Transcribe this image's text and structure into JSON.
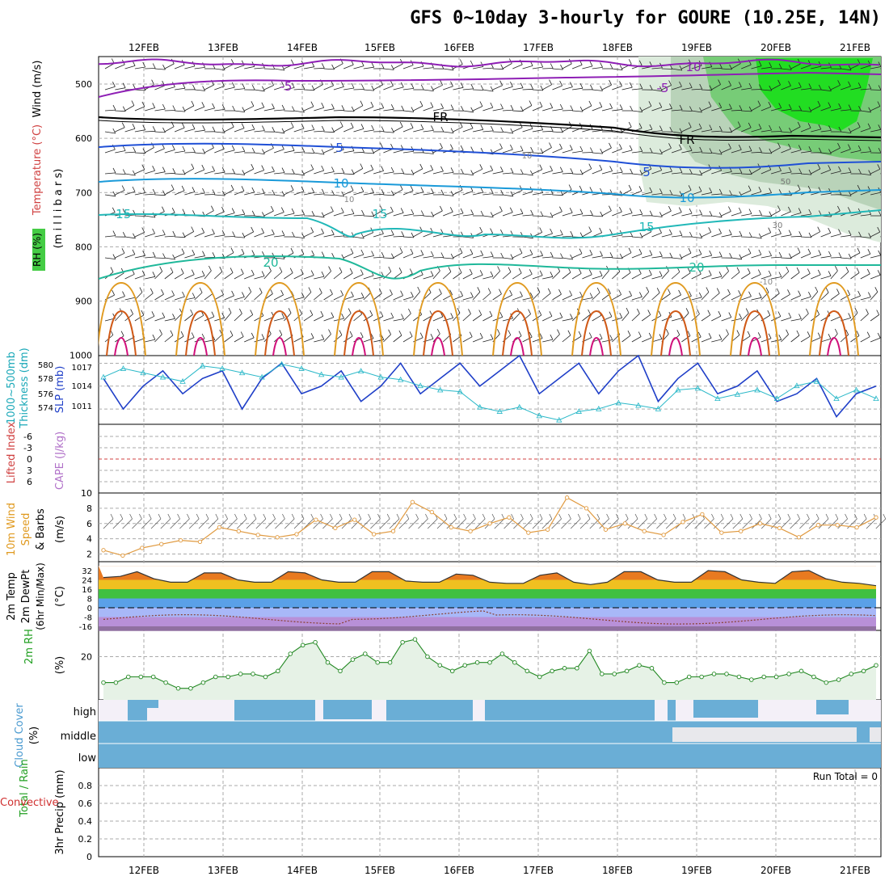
{
  "title": "GFS 0~10day 3-hourly for GOURE (10.25E, 14N)",
  "dates": [
    "12FEB",
    "13FEB",
    "14FEB",
    "15FEB",
    "16FEB",
    "17FEB",
    "18FEB",
    "19FEB",
    "20FEB",
    "21FEB"
  ],
  "colors": {
    "grid": "#aaaaaa",
    "purple": "#8e1fb5",
    "blue": "#1f4fd6",
    "lightblue": "#1a9ad9",
    "teal": "#21b8b8",
    "green": "#1fb89a",
    "orange": "#e09a20",
    "rust": "#d05a18",
    "magenta": "#d0107a",
    "rhgreen": "#22dd22",
    "cloud": "#6aaed6",
    "slp": "#1f3fc8",
    "thick": "#2ab8c8"
  },
  "panels": {
    "upper": {
      "ylabel_wind": "Wind (m/s)",
      "ylabel_temp": "Temperature (°C)",
      "ylabel_rh": "RH (%)",
      "ylabel_mb": "(m i l l i b a r s)",
      "yticks": [
        "500",
        "600",
        "700",
        "800",
        "900",
        "1000"
      ],
      "contour_labels": [
        "10",
        "-5",
        "-5",
        "FR",
        "FR",
        "5",
        "5",
        "10",
        "10",
        "-15",
        "15",
        "15",
        "20",
        "20",
        "10",
        "10",
        "-10",
        "50",
        "30"
      ]
    },
    "pressure": {
      "ylabel_thick": "Thickness (dm)",
      "ylabel_thick2": "1000~500mb",
      "ylabel_slp": "SLP (mb)",
      "thick_ticks": [
        "580",
        "578",
        "576",
        "574"
      ],
      "slp_ticks": [
        "1017",
        "1014",
        "1011"
      ]
    },
    "stability": {
      "ylabel_li": "Lifted Index",
      "ylabel_cape": "CAPE (J/kg)",
      "yticks": [
        "-6",
        "-3",
        "0",
        "3",
        "6"
      ]
    },
    "wind10": {
      "ylabel_a": "10m Wind",
      "ylabel_b": "Speed",
      "ylabel_c": "& Barbs",
      "ylabel_unit": "(m/s)",
      "yticks": [
        "10",
        "8",
        "6",
        "4",
        "2"
      ]
    },
    "temp2m": {
      "ylabel_a": "2m Temp",
      "ylabel_b": "2m DewPt",
      "ylabel_c": "(6hr Min/Max)",
      "ylabel_unit": "(°C)",
      "yticks": [
        "32",
        "24",
        "16",
        "8",
        "0",
        "-8",
        "-16"
      ]
    },
    "rh2m": {
      "ylabel": "2m RH",
      "ylabel_unit": "(%)",
      "yticks": [
        "20"
      ]
    },
    "cloud": {
      "ylabel": "Cloud Cover",
      "ylabel_unit": "(%)",
      "levels": [
        "high",
        "middle",
        "low"
      ]
    },
    "precip": {
      "ylabel_a": "Total / Rain",
      "ylabel_b": "Convective",
      "ylabel_c": "3hr Precip (mm)",
      "yticks": [
        "0.8",
        "0.6",
        "0.4",
        "0.2",
        "0"
      ],
      "run_total": "Run Total = 0"
    }
  },
  "chart_data": [
    {
      "type": "line",
      "name": "slp",
      "x": [
        "11.5",
        "11.75",
        "12.0",
        "12.25",
        "12.5",
        "12.75",
        "13.0",
        "13.25",
        "13.5",
        "13.75",
        "14.0",
        "14.25",
        "14.5",
        "14.75",
        "15.0",
        "15.25",
        "15.5",
        "15.75",
        "16.0",
        "16.25",
        "16.5",
        "16.75",
        "17.0",
        "17.25",
        "17.5",
        "17.75",
        "18.0",
        "18.25",
        "18.5",
        "18.75",
        "19.0",
        "19.25",
        "19.5",
        "19.75",
        "20.0",
        "20.25",
        "20.5",
        "20.75",
        "21.0",
        "21.25"
      ],
      "values": [
        1015,
        1011,
        1014,
        1016,
        1013,
        1015,
        1016,
        1011,
        1015,
        1017,
        1013,
        1014,
        1016,
        1012,
        1014,
        1017,
        1013,
        1015,
        1017,
        1014,
        1016,
        1018,
        1013,
        1015,
        1017,
        1013,
        1016,
        1018,
        1012,
        1015,
        1017,
        1013,
        1014,
        1016,
        1012,
        1013,
        1015,
        1010,
        1013,
        1014
      ],
      "ylim": [
        1009,
        1018
      ]
    },
    {
      "type": "line",
      "name": "thickness",
      "values": [
        578.5,
        579.5,
        579,
        578.5,
        578,
        579.8,
        579.5,
        579,
        578.5,
        580,
        579.5,
        578.8,
        578.5,
        579.2,
        578.5,
        578.2,
        577.5,
        577,
        576.8,
        575,
        574.5,
        575,
        574,
        573.5,
        574.5,
        574.8,
        575.5,
        575.2,
        574.8,
        577,
        577.2,
        576,
        576.5,
        577,
        576,
        577.5,
        578,
        576,
        577,
        576
      ],
      "ylim": [
        573,
        581
      ]
    },
    {
      "type": "line",
      "name": "wind10m_speed",
      "values": [
        2.5,
        1.8,
        2.8,
        3.3,
        3.8,
        3.6,
        5.5,
        5.0,
        4.5,
        4.2,
        4.6,
        6.5,
        5.4,
        6.5,
        4.6,
        5.0,
        8.8,
        7.5,
        5.5,
        5.0,
        6.0,
        6.8,
        4.8,
        5.2,
        9.4,
        8.0,
        5.2,
        6.0,
        5.0,
        4.5,
        6.2,
        7.2,
        4.8,
        5.0,
        6.0,
        5.4,
        4.2,
        5.8,
        5.8,
        5.5,
        6.8
      ],
      "ylim": [
        1,
        10
      ]
    },
    {
      "type": "area",
      "name": "temp2m",
      "values": [
        26,
        27,
        31,
        25,
        22,
        22,
        30,
        30,
        24,
        22,
        22,
        31,
        30,
        24,
        22,
        22,
        31,
        31,
        23,
        22,
        22,
        29,
        28,
        22,
        21,
        21,
        28,
        30,
        22,
        20,
        22,
        31,
        31,
        24,
        22,
        22,
        32,
        31,
        24,
        22,
        21,
        31,
        32,
        25,
        22,
        21,
        19
      ],
      "ylim": [
        -20,
        36
      ]
    },
    {
      "type": "line",
      "name": "rh2m",
      "values": [
        11,
        11,
        13,
        13,
        13,
        11,
        9,
        9,
        11,
        13,
        13,
        14,
        14,
        13,
        15,
        21,
        24,
        25,
        18,
        15,
        19,
        21,
        18,
        18,
        25,
        26,
        20,
        17,
        15,
        17,
        18,
        18,
        21,
        18,
        15,
        13,
        15,
        16,
        16,
        22,
        14,
        14,
        15,
        17,
        16,
        11,
        11,
        13,
        13,
        14,
        14,
        13,
        12,
        13,
        13,
        14,
        15,
        13,
        11,
        12,
        14,
        15,
        17
      ],
      "ylim": [
        5,
        28
      ]
    }
  ]
}
